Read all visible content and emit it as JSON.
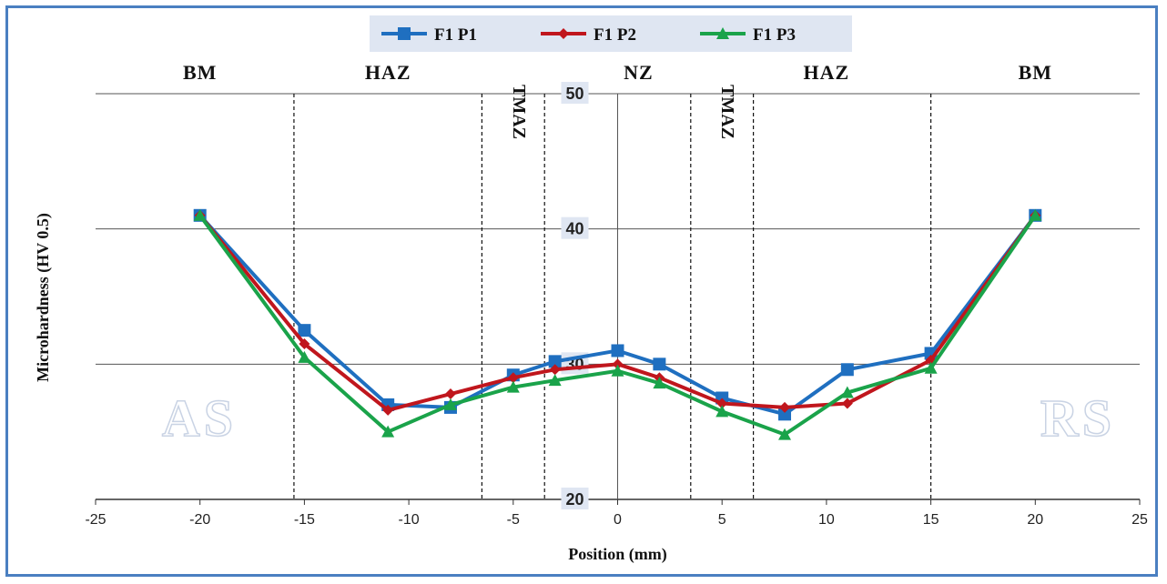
{
  "chart_data": {
    "type": "line",
    "xlabel": "Position (mm)",
    "ylabel": "Microhardness (HV 0.5)",
    "xlim": [
      -25,
      25
    ],
    "ylim": [
      20,
      50
    ],
    "x_ticks": [
      "-25",
      "-20",
      "-15",
      "-10",
      "-5",
      "0",
      "5",
      "10",
      "15",
      "20",
      "25"
    ],
    "y_ticks": [
      "20",
      "30",
      "40",
      "50"
    ],
    "y_ticks_values": [
      20,
      30,
      40,
      50
    ],
    "gridlines": "horizontal",
    "legend_position": "top",
    "zones": [
      {
        "label": "BM",
        "x": -20
      },
      {
        "label": "HAZ",
        "x": -11
      },
      {
        "label": "TMAZ",
        "x": -5,
        "vertical": true
      },
      {
        "label": "NZ",
        "x": 1
      },
      {
        "label": "TMAZ",
        "x": 5,
        "vertical": true
      },
      {
        "label": "HAZ",
        "x": 10
      },
      {
        "label": "BM",
        "x": 20
      }
    ],
    "boundaries": [
      -15.5,
      -6.5,
      -3.5,
      3.5,
      6.5,
      15
    ],
    "side_labels": {
      "left": "AS",
      "right": "RS"
    },
    "series": [
      {
        "name": "F1 P1",
        "color": "#1f6fc0",
        "marker": "square",
        "points": [
          [
            -20,
            41
          ],
          [
            -15,
            32.5
          ],
          [
            -11,
            27
          ],
          [
            -8,
            26.8
          ],
          [
            -5,
            29.2
          ],
          [
            -3,
            30.2
          ],
          [
            0,
            31
          ],
          [
            2,
            30
          ],
          [
            5,
            27.5
          ],
          [
            8,
            26.3
          ],
          [
            11,
            29.6
          ],
          [
            15,
            30.8
          ],
          [
            20,
            41
          ]
        ]
      },
      {
        "name": "F1 P2",
        "color": "#c0161d",
        "marker": "diamond",
        "points": [
          [
            -20,
            41
          ],
          [
            -15,
            31.5
          ],
          [
            -11,
            26.6
          ],
          [
            -8,
            27.8
          ],
          [
            -5,
            29
          ],
          [
            -3,
            29.6
          ],
          [
            0,
            30
          ],
          [
            2,
            29
          ],
          [
            5,
            27.1
          ],
          [
            8,
            26.8
          ],
          [
            11,
            27.1
          ],
          [
            15,
            30.3
          ],
          [
            20,
            41
          ]
        ]
      },
      {
        "name": "F1 P3",
        "color": "#1aa34a",
        "marker": "triangle",
        "points": [
          [
            -20,
            41
          ],
          [
            -15,
            30.5
          ],
          [
            -11,
            25
          ],
          [
            -8,
            27
          ],
          [
            -5,
            28.3
          ],
          [
            -3,
            28.8
          ],
          [
            0,
            29.5
          ],
          [
            2,
            28.6
          ],
          [
            5,
            26.5
          ],
          [
            8,
            24.8
          ],
          [
            11,
            27.9
          ],
          [
            15,
            29.7
          ],
          [
            20,
            41
          ]
        ]
      }
    ]
  }
}
